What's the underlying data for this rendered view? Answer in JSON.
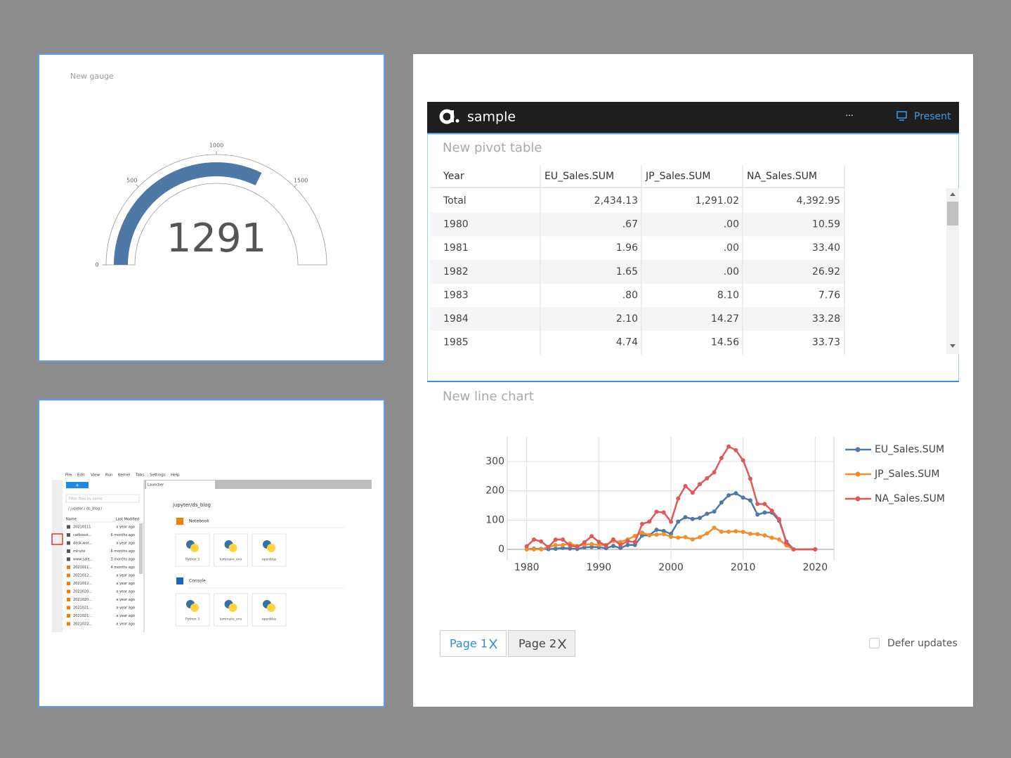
{
  "chart_data": [
    {
      "type": "gauge",
      "title": "New gauge",
      "value": 1291,
      "range": [
        0,
        2000
      ],
      "ticks": [
        0,
        500,
        1000,
        1500
      ],
      "color": "#4e79a7"
    },
    {
      "type": "line",
      "title": "New line chart",
      "x": [
        1980,
        1981,
        1982,
        1983,
        1984,
        1985,
        1986,
        1987,
        1988,
        1989,
        1990,
        1991,
        1992,
        1993,
        1994,
        1995,
        1996,
        1997,
        1998,
        1999,
        2000,
        2001,
        2002,
        2003,
        2004,
        2005,
        2006,
        2007,
        2008,
        2009,
        2010,
        2011,
        2012,
        2013,
        2014,
        2015,
        2016,
        2017,
        2020
      ],
      "series": [
        {
          "name": "EU_Sales.SUM",
          "color": "#4e79a7",
          "values": [
            0.67,
            1.96,
            1.65,
            0.8,
            2.1,
            4.74,
            2.84,
            1.41,
            6.59,
            8.44,
            7.63,
            3.95,
            11.71,
            4.65,
            14.88,
            14.9,
            47.26,
            48.32,
            66.9,
            62.67,
            52.75,
            94.89,
            109.74,
            103.81,
            107.32,
            121.55,
            129.24,
            160.18,
            184.4,
            191.59,
            176.73,
            167.44,
            118.78,
            125.8,
            125.65,
            97.71,
            26.76,
            0,
            0
          ]
        },
        {
          "name": "JP_Sales.SUM",
          "color": "#f28e2b",
          "values": [
            0,
            0,
            0,
            8.1,
            14.27,
            14.56,
            19.81,
            11.63,
            15.76,
            18.36,
            14.88,
            14.78,
            28.91,
            25.33,
            33.99,
            45.75,
            57.44,
            48.87,
            50.04,
            52.34,
            42.77,
            39.86,
            41.76,
            34.2,
            41.65,
            54.28,
            73.73,
            60.29,
            60.26,
            61.89,
            59.49,
            53.04,
            51.8,
            47.59,
            39.46,
            33.72,
            13.7,
            0.05,
            0
          ]
        },
        {
          "name": "NA_Sales.SUM",
          "color": "#e15759",
          "values": [
            10.59,
            33.4,
            26.92,
            7.76,
            33.28,
            33.73,
            12.5,
            8.46,
            23.87,
            45.15,
            25.46,
            12.76,
            33.87,
            15.12,
            28.15,
            24.82,
            86.76,
            94.75,
            128.36,
            126.06,
            94.49,
            173.98,
            216.19,
            193.59,
            222.59,
            242.61,
            263.12,
            312.05,
            351.44,
            338.85,
            304.24,
            241.06,
            154.96,
            154.77,
            131.97,
            102.82,
            22.66,
            0,
            0.27
          ]
        }
      ],
      "xlim": [
        1977.3,
        2022.6
      ],
      "xticks": [
        1980,
        1990,
        2000,
        2010,
        2020
      ],
      "ylim": [
        -36,
        384
      ],
      "yticks": [
        0,
        100,
        200,
        300
      ],
      "grid": true
    }
  ],
  "dashboard": {
    "title": "sample",
    "menu": "···",
    "present": "Present"
  },
  "pivot": {
    "title": "New pivot table",
    "columns": [
      "Year",
      "EU_Sales.SUM",
      "JP_Sales.SUM",
      "NA_Sales.SUM"
    ],
    "rows": [
      [
        "Total",
        "2,434.13",
        "1,291.02",
        "4,392.95"
      ],
      [
        "1980",
        ".67",
        ".00",
        "10.59"
      ],
      [
        "1981",
        "1.96",
        ".00",
        "33.40"
      ],
      [
        "1982",
        "1.65",
        ".00",
        "26.92"
      ],
      [
        "1983",
        ".80",
        "8.10",
        "7.76"
      ],
      [
        "1984",
        "2.10",
        "14.27",
        "33.28"
      ],
      [
        "1985",
        "4.74",
        "14.56",
        "33.73"
      ]
    ]
  },
  "tabs": [
    "Page 1",
    "Page 2"
  ],
  "defer": "Defer updates",
  "jupyter": {
    "menu": [
      "File",
      "Edit",
      "View",
      "Run",
      "Kernel",
      "Tabs",
      "Settings",
      "Help"
    ],
    "new": "+",
    "filter": "Filter files by name",
    "path": "/ jupyter / ds_blog /",
    "name_header": "Name",
    "modified_header": "Last Modified",
    "files": [
      [
        "20210111",
        "a year ago"
      ],
      [
        "catboost...",
        "6 months ago"
      ],
      [
        "dask-wor...",
        "a year ago"
      ],
      [
        "mlruns",
        "6 months ago"
      ],
      [
        "www.sale...",
        "3 months ago"
      ],
      [
        "2021011...",
        "4 months ago"
      ],
      [
        "2021012...",
        "a year ago"
      ],
      [
        "2021012...",
        "a year ago"
      ],
      [
        "2021020...",
        "a year ago"
      ],
      [
        "2021020...",
        "a year ago"
      ],
      [
        "2021021...",
        "a year ago"
      ],
      [
        "2021021...",
        "a year ago"
      ],
      [
        "2021022...",
        "a year ago"
      ]
    ],
    "tab": "Launcher",
    "dir": "jupyter/ds_blog",
    "sections": [
      "Notebook",
      "Console"
    ],
    "kernels": [
      "Python 3",
      "luminaire_env",
      "openblas"
    ]
  }
}
